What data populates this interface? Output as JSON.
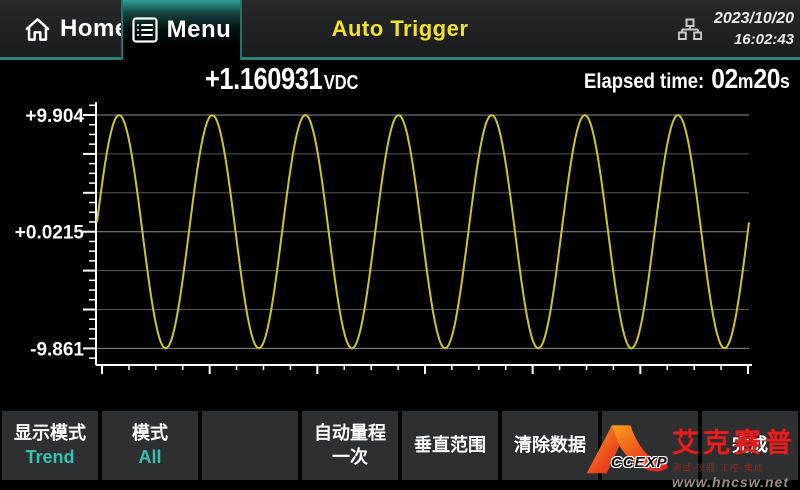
{
  "header": {
    "home_label": "Home",
    "menu_label": "Menu",
    "trigger_status": "Auto Trigger",
    "date": "2023/10/20",
    "time": "16:02:43"
  },
  "reading": {
    "value": "+1.160931",
    "unit": "VDC",
    "elapsed_label": "Elapsed time:",
    "elapsed_minutes": "02",
    "elapsed_minutes_unit": "m",
    "elapsed_seconds": "20",
    "elapsed_seconds_unit": "s"
  },
  "chart_data": {
    "type": "line",
    "signal": "sine",
    "title": "",
    "xlabel": "",
    "ylabel": "",
    "y_tick_labels": [
      "+9.904",
      "+0.0215",
      "-9.861"
    ],
    "y_max": 9.904,
    "y_mid": 0.0215,
    "y_min": -9.861,
    "ylim": [
      -9.861,
      9.904
    ],
    "amplitude": 9.88,
    "offset": 0.02,
    "cycles_visible": 7,
    "phase_rad": 0.08,
    "grid": true,
    "x_major_ticks": 7,
    "x_minor_per_major": 4,
    "trace_color": "#cfc32b",
    "grid_color": "#565656",
    "labeled_grid_color": "#8c8c8c",
    "axis_color": "#ffffff"
  },
  "softkeys": [
    {
      "line1": "显示模式",
      "line2": "Trend"
    },
    {
      "line1": "模式",
      "line2": "All"
    },
    {
      "line1": "",
      "line2": ""
    },
    {
      "line1": "自动量程",
      "line2": "一次"
    },
    {
      "line1": "垂直范围",
      "line2": ""
    },
    {
      "line1": "清除数据",
      "line2": ""
    },
    {
      "line1": "",
      "line2": ""
    },
    {
      "line1": "完成",
      "line2": ""
    }
  ],
  "colors": {
    "accent_teal": "#2a8279",
    "tab_teal": "#2ba196",
    "trigger_yellow": "#f2e22a",
    "softkey_value_teal": "#36c2b1",
    "trace_yellow": "#cfc32b",
    "watermark_red": "#e51f1f"
  },
  "watermark": {
    "logo_text": "CCEXP",
    "brand": "艾克赛普",
    "tagline": "测试·仪器·工控·集成",
    "website": "www.hncsw.net"
  }
}
